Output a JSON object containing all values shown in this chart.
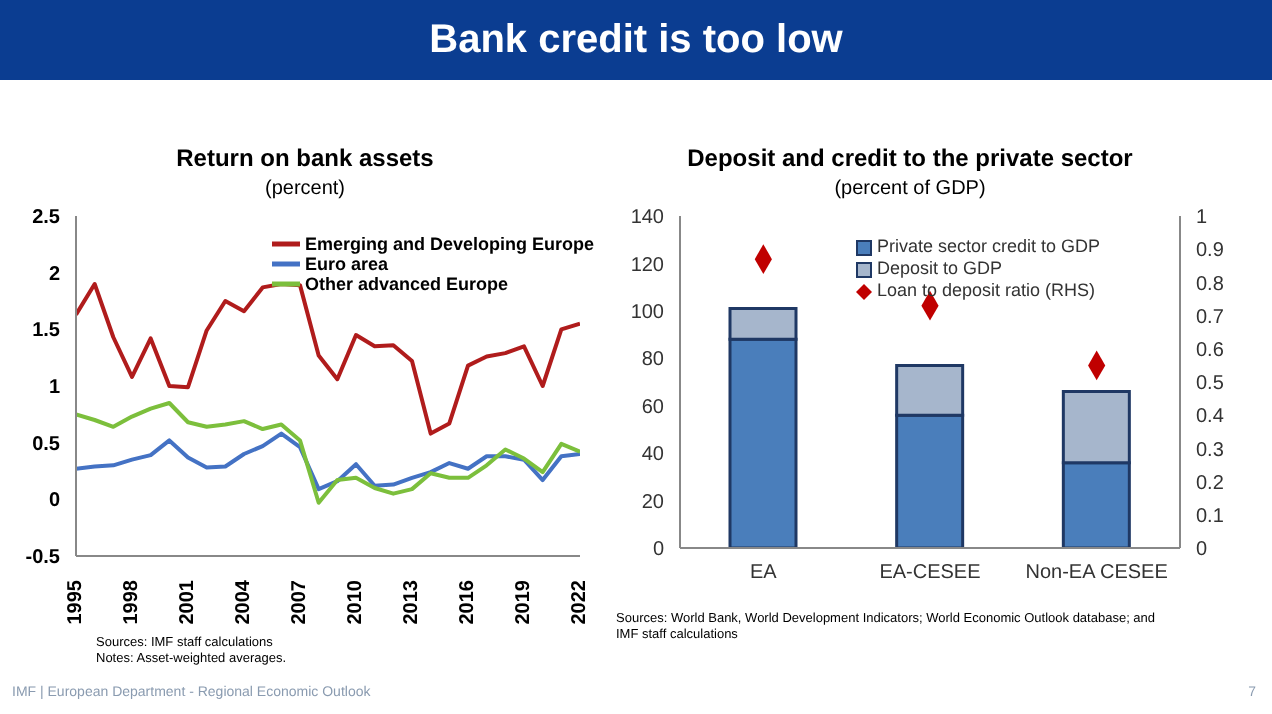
{
  "chart_data": [
    {
      "type": "line",
      "title": "Return on bank assets",
      "subtitle": "(percent)",
      "x": [
        1995,
        1996,
        1997,
        1998,
        1999,
        2000,
        2001,
        2002,
        2003,
        2004,
        2005,
        2006,
        2007,
        2008,
        2009,
        2010,
        2011,
        2012,
        2013,
        2014,
        2015,
        2016,
        2017,
        2018,
        2019,
        2020,
        2021,
        2022
      ],
      "series": [
        {
          "name": "Emerging and Developing Europe",
          "color": "#b01c1c",
          "values": [
            1.63,
            1.9,
            1.43,
            1.08,
            1.42,
            1.0,
            0.99,
            1.49,
            1.75,
            1.66,
            1.87,
            1.9,
            1.89,
            1.27,
            1.06,
            1.45,
            1.35,
            1.36,
            1.22,
            0.58,
            0.67,
            1.18,
            1.26,
            1.29,
            1.35,
            1.0,
            1.5,
            1.55
          ]
        },
        {
          "name": "Euro area",
          "color": "#4472c4",
          "values": [
            0.27,
            0.29,
            0.3,
            0.35,
            0.39,
            0.52,
            0.37,
            0.28,
            0.29,
            0.4,
            0.47,
            0.58,
            0.46,
            0.09,
            0.16,
            0.31,
            0.12,
            0.13,
            0.19,
            0.24,
            0.32,
            0.27,
            0.38,
            0.38,
            0.35,
            0.17,
            0.38,
            0.4
          ]
        },
        {
          "name": "Other advanced Europe",
          "color": "#7cbf3c",
          "values": [
            0.75,
            0.7,
            0.64,
            0.73,
            0.8,
            0.85,
            0.68,
            0.64,
            0.66,
            0.69,
            0.62,
            0.66,
            0.52,
            -0.03,
            0.17,
            0.19,
            0.1,
            0.05,
            0.09,
            0.23,
            0.19,
            0.19,
            0.3,
            0.44,
            0.36,
            0.24,
            0.49,
            0.42
          ]
        }
      ],
      "xlim": [
        1995,
        2022
      ],
      "xticks": [
        1995,
        1998,
        2001,
        2004,
        2007,
        2010,
        2013,
        2016,
        2019,
        2022
      ],
      "ylim": [
        -0.5,
        2.5
      ],
      "yticks": [
        -0.5,
        0,
        0.5,
        1,
        1.5,
        2,
        2.5
      ],
      "legend": "top right",
      "annotations": [
        "Sources: IMF staff calculations",
        "Notes: Asset-weighted averages."
      ]
    },
    {
      "type": "bar",
      "title": "Deposit and credit to the private sector",
      "subtitle": "(percent of GDP)",
      "categories": [
        "EA",
        "EA-CESEE",
        "Non-EA CESEE"
      ],
      "stacked": true,
      "series": [
        {
          "name": "Private sector credit to GDP",
          "color": "#4a7ebb",
          "values": [
            88,
            56,
            36
          ]
        },
        {
          "name": "Deposit to GDP",
          "color": "#a6b6cc",
          "values": [
            13,
            21,
            30
          ]
        },
        {
          "name": "Loan to deposit ratio (RHS)",
          "type": "scatter",
          "axis": "y2",
          "marker": "diamond",
          "color": "#c00000",
          "values": [
            0.87,
            0.73,
            0.55
          ]
        }
      ],
      "ylim": [
        0,
        140
      ],
      "yticks": [
        0,
        20,
        40,
        60,
        80,
        100,
        120,
        140
      ],
      "y2lim": [
        0,
        1
      ],
      "y2ticks": [
        0,
        0.1,
        0.2,
        0.3,
        0.4,
        0.5,
        0.6,
        0.7,
        0.8,
        0.9,
        1
      ],
      "legend": "top right",
      "annotations": [
        "Sources: World Bank, World Development Indicators; World Economic Outlook database; and IMF staff calculations"
      ]
    },
    {
      "type": "other",
      "title": "Bank credit is too low",
      "annotations": [
        "IMF | European Department - Regional Economic Outlook",
        "7"
      ]
    }
  ]
}
